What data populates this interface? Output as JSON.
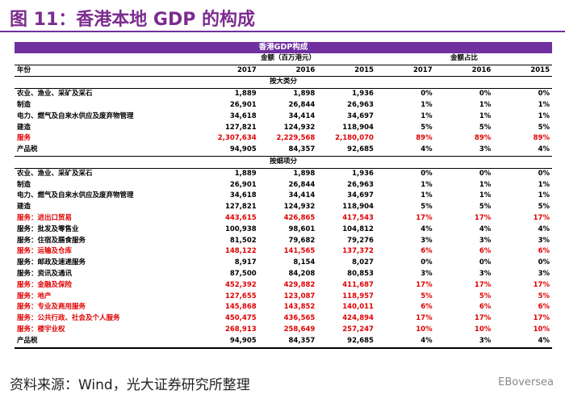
{
  "header": {
    "title": "图 11：香港本地 GDP 的构成"
  },
  "table": {
    "title": "香港GDP构成",
    "group_headers": [
      "金额（百万港元）",
      "金额占比"
    ],
    "columns": [
      "年份",
      "2017",
      "2016",
      "2015",
      "2017",
      "2016",
      "2015"
    ],
    "sections": [
      {
        "title": "按大类分",
        "rows": [
          {
            "label": "农业、渔业、采矿及采石",
            "values": [
              "1,889",
              "1,898",
              "1,936",
              "0%",
              "0%",
              "0%"
            ],
            "highlight": false
          },
          {
            "label": "制造",
            "values": [
              "26,901",
              "26,844",
              "26,963",
              "1%",
              "1%",
              "1%"
            ],
            "highlight": false
          },
          {
            "label": "电力、燃气及自来水供应及废弃物管理",
            "values": [
              "34,618",
              "34,414",
              "34,697",
              "1%",
              "1%",
              "1%"
            ],
            "highlight": false
          },
          {
            "label": "建造",
            "values": [
              "127,821",
              "124,932",
              "118,904",
              "5%",
              "5%",
              "5%"
            ],
            "highlight": false
          },
          {
            "label": "服务",
            "values": [
              "2,307,634",
              "2,229,568",
              "2,180,070",
              "89%",
              "89%",
              "89%"
            ],
            "highlight": true
          },
          {
            "label": "产品税",
            "values": [
              "94,905",
              "84,357",
              "92,685",
              "4%",
              "3%",
              "4%"
            ],
            "highlight": false
          }
        ]
      },
      {
        "title": "按细项分",
        "rows": [
          {
            "label": "农业、渔业、采矿及采石",
            "values": [
              "1,889",
              "1,898",
              "1,936",
              "0%",
              "0%",
              "0%"
            ],
            "highlight": false
          },
          {
            "label": "制造",
            "values": [
              "26,901",
              "26,844",
              "26,963",
              "1%",
              "1%",
              "1%"
            ],
            "highlight": false
          },
          {
            "label": "电力、燃气及自来水供应及废弃物管理",
            "values": [
              "34,618",
              "34,414",
              "34,697",
              "1%",
              "1%",
              "1%"
            ],
            "highlight": false
          },
          {
            "label": "建造",
            "values": [
              "127,821",
              "124,932",
              "118,904",
              "5%",
              "5%",
              "5%"
            ],
            "highlight": false
          },
          {
            "label": "服务：进出口贸易",
            "values": [
              "443,615",
              "426,865",
              "417,543",
              "17%",
              "17%",
              "17%"
            ],
            "highlight": true
          },
          {
            "label": "服务：批发及零售业",
            "values": [
              "100,938",
              "98,601",
              "104,812",
              "4%",
              "4%",
              "4%"
            ],
            "highlight": false
          },
          {
            "label": "服务：住宿及膳食服务",
            "values": [
              "81,502",
              "79,682",
              "79,276",
              "3%",
              "3%",
              "3%"
            ],
            "highlight": false
          },
          {
            "label": "服务：运输及仓库",
            "values": [
              "148,122",
              "141,565",
              "137,372",
              "6%",
              "6%",
              "6%"
            ],
            "highlight": true
          },
          {
            "label": "服务：邮政及速递服务",
            "values": [
              "8,917",
              "8,154",
              "8,027",
              "0%",
              "0%",
              "0%"
            ],
            "highlight": false
          },
          {
            "label": "服务：资讯及通讯",
            "values": [
              "87,500",
              "84,208",
              "80,853",
              "3%",
              "3%",
              "3%"
            ],
            "highlight": false
          },
          {
            "label": "服务：金融及保险",
            "values": [
              "452,392",
              "429,882",
              "411,687",
              "17%",
              "17%",
              "17%"
            ],
            "highlight": true
          },
          {
            "label": "服务：地产",
            "values": [
              "127,655",
              "123,087",
              "118,957",
              "5%",
              "5%",
              "5%"
            ],
            "highlight": true
          },
          {
            "label": "服务：专业及商用服务",
            "values": [
              "145,868",
              "143,852",
              "140,011",
              "6%",
              "6%",
              "6%"
            ],
            "highlight": true
          },
          {
            "label": "服务：公共行政、社会及个人服务",
            "values": [
              "450,475",
              "436,565",
              "424,894",
              "17%",
              "17%",
              "17%"
            ],
            "highlight": true
          },
          {
            "label": "服务：楼宇业权",
            "values": [
              "268,913",
              "258,649",
              "257,247",
              "10%",
              "10%",
              "10%"
            ],
            "highlight": true
          },
          {
            "label": "产品税",
            "values": [
              "94,905",
              "84,357",
              "92,685",
              "4%",
              "3%",
              "4%"
            ],
            "highlight": false
          }
        ]
      }
    ]
  },
  "footer": {
    "source": "资料来源：Wind，光大证券研究所整理",
    "watermark": "EBoversea"
  }
}
